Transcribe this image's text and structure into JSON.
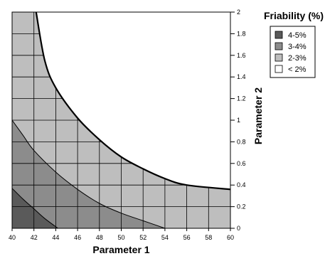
{
  "chart_data": {
    "type": "contour",
    "xlabel": "Parameter 1",
    "ylabel": "Parameter 2",
    "xlim": [
      40,
      60
    ],
    "ylim": [
      0,
      2
    ],
    "x_ticks": [
      "40",
      "42",
      "44",
      "46",
      "48",
      "50",
      "52",
      "54",
      "56",
      "58",
      "60"
    ],
    "y_ticks": [
      "0",
      "0.2",
      "0.4",
      "0.6",
      "0.8",
      "1",
      "1.2",
      "1.4",
      "1.6",
      "1.8",
      "2"
    ],
    "grid": true,
    "legend": {
      "title": "Friability (%)",
      "placement": "right",
      "entries": [
        {
          "label": "4-5%",
          "color": "#5a5a5a"
        },
        {
          "label": "3-4%",
          "color": "#8c8c8c"
        },
        {
          "label": "2-3%",
          "color": "#bebebe"
        },
        {
          "label": "< 2%",
          "color": "#ffffff"
        }
      ]
    },
    "regions": [
      {
        "label": "2-3%",
        "color": "#bebebe",
        "boundary": [
          [
            40,
            2
          ],
          [
            40,
            0
          ],
          [
            60,
            0
          ],
          [
            60,
            0.36
          ],
          [
            56,
            0.4
          ],
          [
            54,
            0.46
          ],
          [
            52,
            0.55
          ],
          [
            50,
            0.66
          ],
          [
            48,
            0.82
          ],
          [
            46,
            1.02
          ],
          [
            44,
            1.3
          ],
          [
            43,
            1.55
          ],
          [
            42.2,
            2
          ]
        ]
      },
      {
        "label": "3-4%",
        "color": "#8c8c8c",
        "boundary": [
          [
            40,
            1.0
          ],
          [
            41,
            0.86
          ],
          [
            42,
            0.72
          ],
          [
            44,
            0.52
          ],
          [
            46,
            0.36
          ],
          [
            48,
            0.23
          ],
          [
            50,
            0.14
          ],
          [
            52,
            0.07
          ],
          [
            54,
            0
          ]
        ]
      },
      {
        "label": "4-5%",
        "color": "#5a5a5a",
        "boundary": [
          [
            40,
            0.37
          ],
          [
            41,
            0.27
          ],
          [
            42,
            0.18
          ],
          [
            43,
            0.09
          ],
          [
            44.2,
            0
          ]
        ]
      },
      {
        "label": "< 2%",
        "color": "#ffffff",
        "boundary": [
          [
            42.2,
            2
          ],
          [
            43,
            1.55
          ],
          [
            44,
            1.3
          ],
          [
            46,
            1.02
          ],
          [
            48,
            0.82
          ],
          [
            50,
            0.66
          ],
          [
            52,
            0.55
          ],
          [
            54,
            0.46
          ],
          [
            56,
            0.4
          ],
          [
            60,
            0.36
          ]
        ]
      }
    ]
  }
}
